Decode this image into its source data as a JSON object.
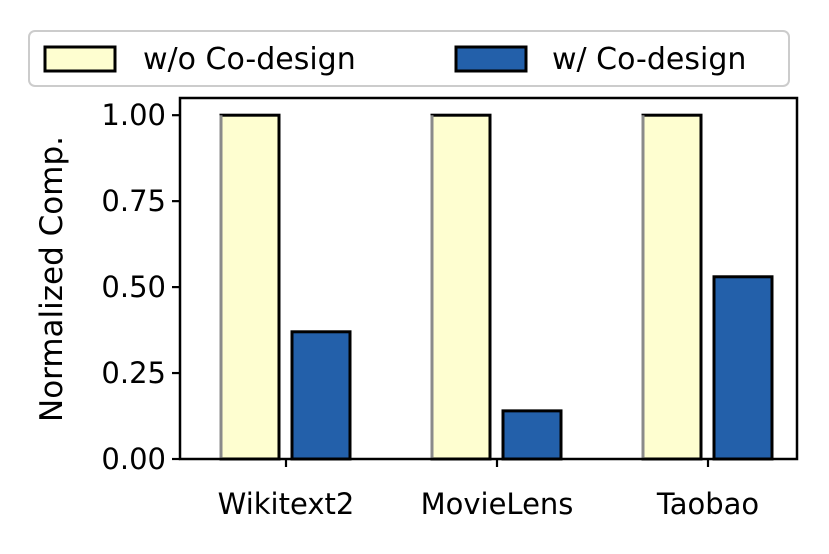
{
  "chart_data": {
    "type": "bar",
    "title": "",
    "xlabel": "",
    "ylabel": "Normalized Comp.",
    "categories": [
      "Wikitext2",
      "MovieLens",
      "Taobao"
    ],
    "ylim": [
      0,
      1.05
    ],
    "yticks": [
      0.0,
      0.25,
      0.5,
      0.75,
      1.0
    ],
    "ytick_labels": [
      "0.00",
      "0.25",
      "0.50",
      "0.75",
      "1.00"
    ],
    "grid": false,
    "legend_placement": "top, above plot",
    "series": [
      {
        "name": "w/o Co-design",
        "values": [
          1.0,
          1.0,
          1.0
        ],
        "color": "#fefed0"
      },
      {
        "name": "w/ Co-design",
        "values": [
          0.37,
          0.14,
          0.53
        ],
        "color": "#2360aa"
      }
    ]
  }
}
